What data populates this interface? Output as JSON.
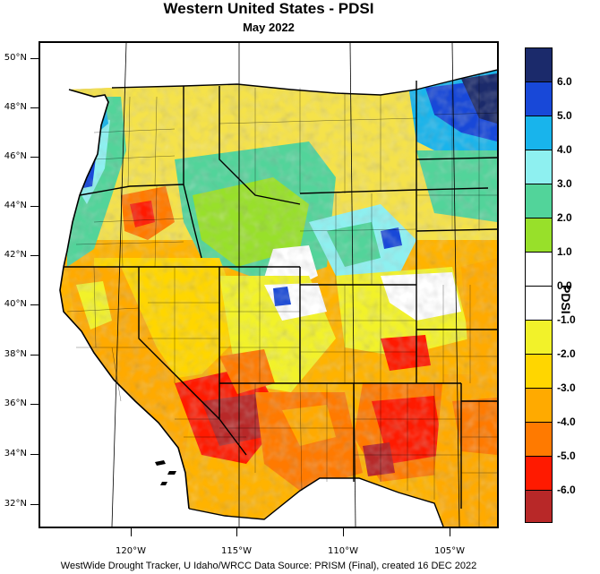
{
  "header": {
    "title": "Western United States - PDSI",
    "subtitle": "May 2022"
  },
  "map": {
    "lat_labels": [
      "50°N",
      "48°N",
      "46°N",
      "44°N",
      "42°N",
      "40°N",
      "38°N",
      "36°N",
      "34°N",
      "32°N"
    ],
    "lon_labels": [
      "120°W",
      "115°W",
      "110°W",
      "105°W"
    ]
  },
  "legend": {
    "title": "PDSI",
    "labels": [
      "6.0",
      "5.0",
      "4.0",
      "3.0",
      "2.0",
      "1.0",
      "0.0",
      "-1.0",
      "-2.0",
      "-3.0",
      "-4.0",
      "-5.0",
      "-6.0"
    ],
    "colors": [
      "#1b2a6b",
      "#1848d8",
      "#18b4ec",
      "#8ef0f0",
      "#52d49a",
      "#98e02a",
      "#ffffff",
      "#ffffff",
      "#f2f22a",
      "#ffd600",
      "#ffaa00",
      "#ff7a00",
      "#ff1a00",
      "#b82828"
    ]
  },
  "footer": {
    "credit": "WestWide Drought Tracker, U Idaho/WRCC Data Source: PRISM (Final), created 16 DEC 2022"
  }
}
